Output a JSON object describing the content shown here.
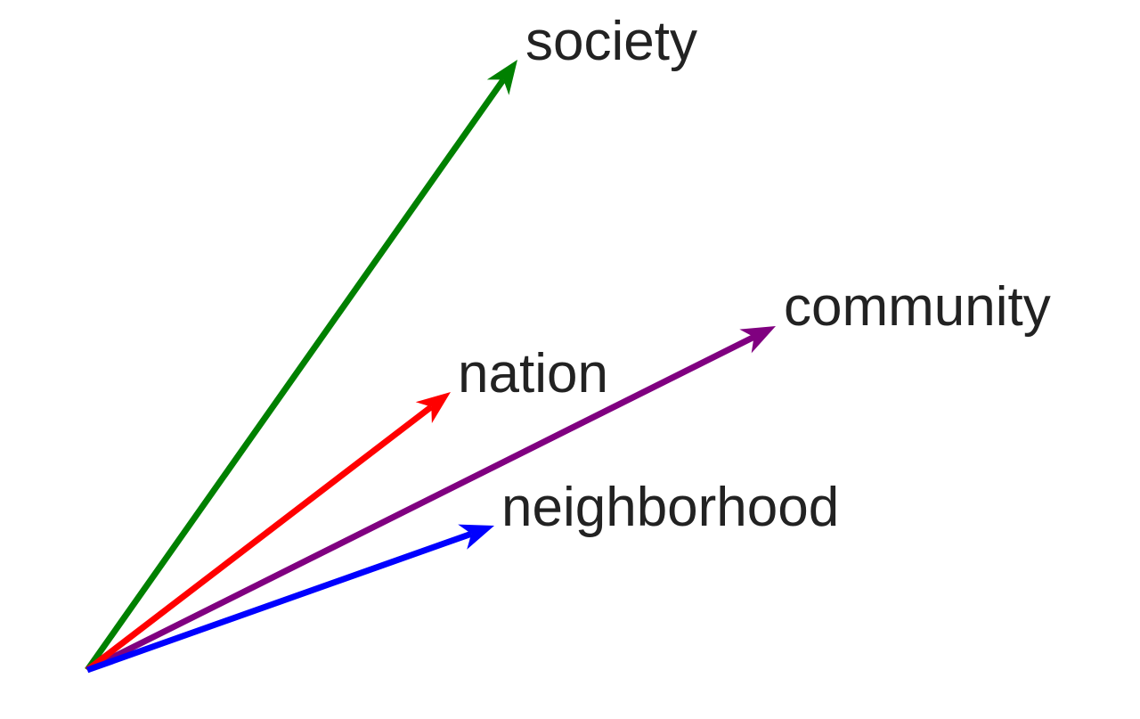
{
  "vectors": [
    {
      "id": "society",
      "label": "society",
      "color": "#008000"
    },
    {
      "id": "community",
      "label": "community",
      "color": "#800080"
    },
    {
      "id": "nation",
      "label": "nation",
      "color": "#ff0000"
    },
    {
      "id": "neighborhood",
      "label": "neighborhood",
      "color": "#0000ff"
    }
  ]
}
